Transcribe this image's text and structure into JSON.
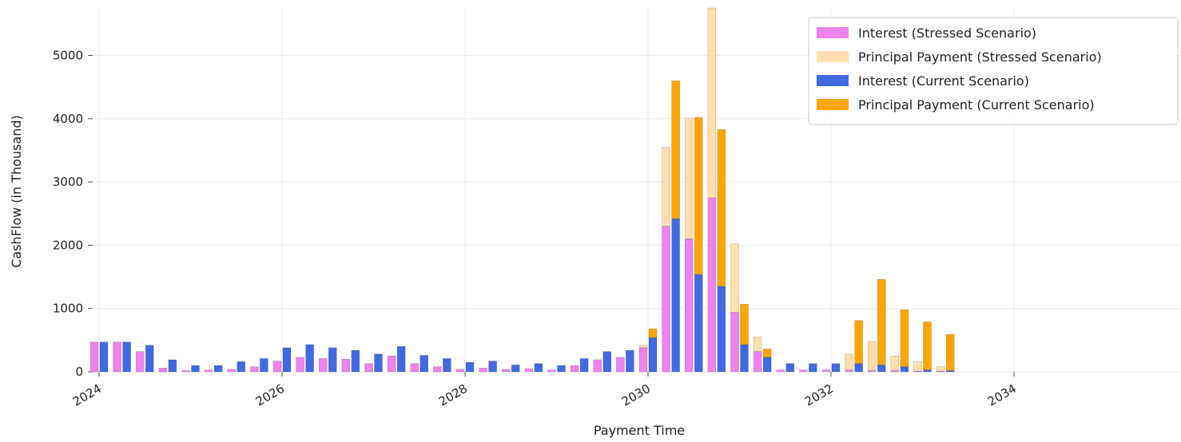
{
  "chart_data": {
    "type": "bar",
    "title": "",
    "xlabel": "Payment Time",
    "ylabel": "CashFlow (in Thousand)",
    "ylim": [
      0,
      5750
    ],
    "y_ticks": [
      0,
      1000,
      2000,
      3000,
      4000,
      5000
    ],
    "x_ticks": [
      "2024",
      "2026",
      "2028",
      "2030",
      "2032",
      "2034"
    ],
    "grid": true,
    "stacked": true,
    "legend_position": "top-right",
    "periods": [
      "2024-01",
      "2024-04",
      "2024-07",
      "2024-10",
      "2025-01",
      "2025-04",
      "2025-07",
      "2025-10",
      "2026-01",
      "2026-04",
      "2026-07",
      "2026-10",
      "2027-01",
      "2027-04",
      "2027-07",
      "2027-10",
      "2028-01",
      "2028-04",
      "2028-07",
      "2028-10",
      "2029-01",
      "2029-04",
      "2029-07",
      "2029-10",
      "2030-01",
      "2030-04",
      "2030-07",
      "2030-10",
      "2031-01",
      "2031-04",
      "2031-07",
      "2031-10",
      "2032-01",
      "2032-04",
      "2032-07",
      "2032-10",
      "2033-01",
      "2033-04"
    ],
    "series": [
      {
        "name": "Interest (Stressed Scenario)",
        "group": "stressed",
        "color": "#ee82ee",
        "values": [
          470,
          470,
          320,
          60,
          20,
          30,
          40,
          80,
          170,
          230,
          210,
          200,
          130,
          250,
          130,
          80,
          40,
          60,
          40,
          50,
          30,
          100,
          190,
          230,
          380,
          2300,
          2100,
          2750,
          940,
          320,
          30,
          30,
          30,
          30,
          20,
          20,
          10,
          10
        ]
      },
      {
        "name": "Principal Payment (Stressed Scenario)",
        "group": "stressed",
        "color": "#ffdead",
        "values": [
          0,
          0,
          0,
          0,
          0,
          0,
          0,
          0,
          0,
          0,
          0,
          0,
          0,
          0,
          0,
          0,
          0,
          0,
          0,
          0,
          0,
          0,
          0,
          0,
          40,
          1250,
          1910,
          3000,
          1080,
          230,
          0,
          0,
          0,
          250,
          460,
          230,
          150,
          70
        ]
      },
      {
        "name": "Interest (Current Scenario)",
        "group": "current",
        "color": "#4169e1",
        "values": [
          470,
          470,
          420,
          190,
          100,
          100,
          160,
          210,
          380,
          430,
          380,
          340,
          280,
          400,
          260,
          210,
          150,
          170,
          110,
          130,
          100,
          210,
          320,
          340,
          540,
          2420,
          1540,
          1350,
          430,
          230,
          130,
          130,
          130,
          130,
          110,
          80,
          30,
          20
        ]
      },
      {
        "name": "Principal Payment (Current Scenario)",
        "group": "current",
        "color": "#ffa500",
        "values": [
          0,
          0,
          0,
          0,
          0,
          0,
          0,
          0,
          0,
          0,
          0,
          0,
          0,
          0,
          0,
          0,
          0,
          0,
          0,
          0,
          0,
          0,
          0,
          0,
          140,
          2180,
          2480,
          2480,
          640,
          130,
          0,
          0,
          0,
          680,
          1350,
          900,
          760,
          570
        ]
      }
    ]
  }
}
